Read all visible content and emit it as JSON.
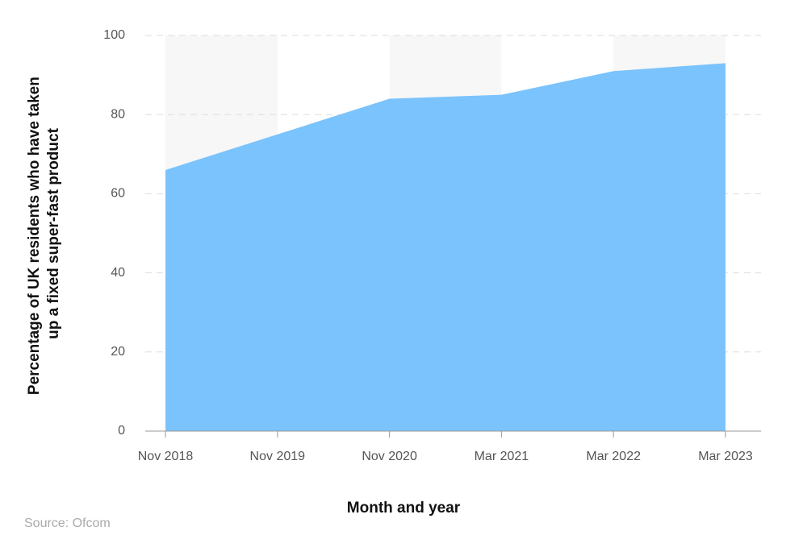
{
  "chart_data": {
    "type": "area",
    "y_label": [
      "Percentage of UK residents who have taken",
      "up a fixed super-fast product"
    ],
    "x_label": "Month and year",
    "source": "Source: Ofcom",
    "categories": [
      "Nov 2018",
      "Nov 2019",
      "Nov 2020",
      "Mar 2021",
      "Mar 2022",
      "Mar 2023"
    ],
    "values": [
      66,
      75,
      84,
      85,
      91,
      93
    ],
    "color": "#7bc3fc",
    "ylim": [
      0,
      100
    ],
    "yticks": [
      0,
      20,
      40,
      60,
      80,
      100
    ],
    "grid": true
  }
}
